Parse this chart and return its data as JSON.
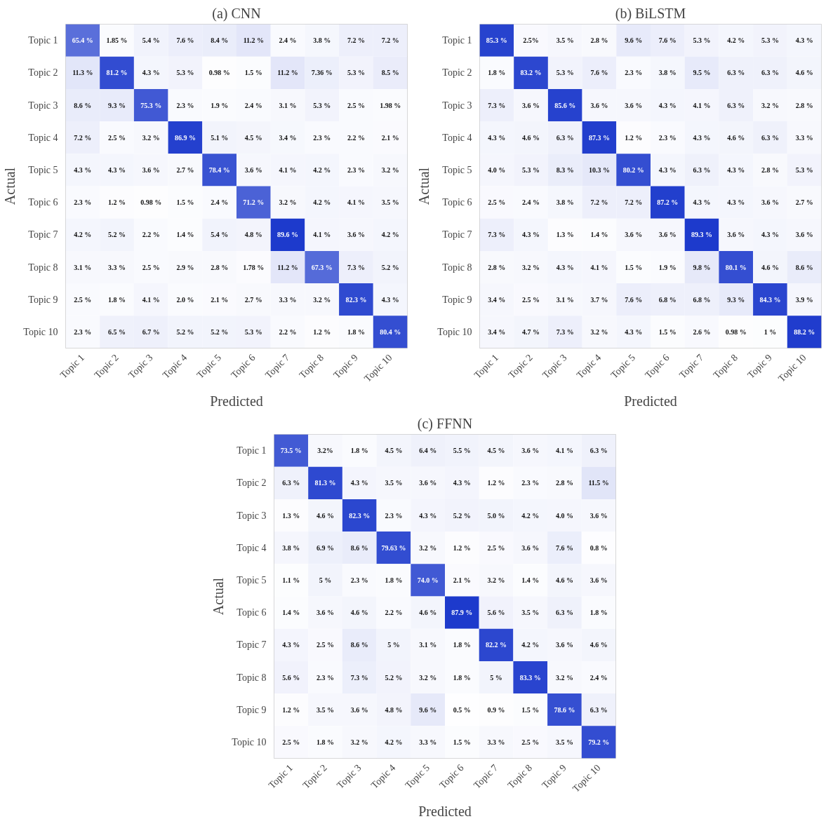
{
  "chart_data": [
    {
      "type": "heatmap",
      "title": "(a) CNN",
      "xlabel": "Predicted",
      "ylabel": "Actual",
      "categories": [
        "Topic 1",
        "Topic 2",
        "Topic 3",
        "Topic 4",
        "Topic 5",
        "Topic 6",
        "Topic 7",
        "Topic 8",
        "Topic 9",
        "Topic 10"
      ],
      "y_categories": [
        "Topic 1",
        "Topic 2",
        "Topic 3",
        "Topic 4",
        "Topic 5",
        "Topic 6",
        "Topic 7",
        "Topic 8",
        "Topic 9",
        "Topic 10"
      ],
      "cells": [
        [
          65.4,
          1.85,
          5.4,
          7.6,
          8.4,
          11.2,
          2.4,
          3.8,
          7.2,
          7.2
        ],
        [
          11.3,
          81.2,
          4.3,
          5.3,
          0.98,
          1.5,
          11.2,
          7.36,
          5.3,
          8.5
        ],
        [
          8.6,
          9.3,
          75.3,
          2.3,
          1.9,
          2.4,
          3.1,
          5.3,
          2.5,
          1.98
        ],
        [
          7.2,
          2.5,
          3.2,
          86.9,
          5.1,
          4.5,
          3.4,
          2.3,
          2.2,
          2.1
        ],
        [
          4.3,
          4.3,
          3.6,
          2.7,
          78.4,
          3.6,
          4.1,
          4.2,
          2.3,
          3.2
        ],
        [
          2.3,
          1.2,
          0.98,
          1.5,
          2.4,
          71.2,
          3.2,
          4.2,
          4.1,
          3.5
        ],
        [
          4.2,
          5.2,
          2.2,
          1.4,
          5.4,
          4.8,
          89.6,
          4.1,
          3.6,
          4.2
        ],
        [
          3.1,
          3.3,
          2.5,
          2.9,
          2.8,
          1.78,
          11.2,
          67.3,
          7.3,
          5.2
        ],
        [
          2.5,
          1.8,
          4.1,
          2.0,
          2.1,
          2.7,
          3.3,
          3.2,
          82.3,
          4.3
        ],
        [
          2.3,
          6.5,
          6.7,
          5.2,
          5.2,
          5.3,
          2.2,
          1.2,
          1.8,
          80.4
        ]
      ],
      "cell_labels": [
        [
          "65.4 %",
          "1.85 %",
          "5.4 %",
          "7.6 %",
          "8.4 %",
          "11.2 %",
          "2.4 %",
          "3.8 %",
          "7.2 %",
          "7.2 %"
        ],
        [
          "11.3 %",
          "81.2 %",
          "4.3 %",
          "5.3 %",
          "0.98 %",
          "1.5 %",
          "11.2 %",
          "7.36 %",
          "5.3 %",
          "8.5 %"
        ],
        [
          "8.6 %",
          "9.3 %",
          "75.3 %",
          "2.3 %",
          "1.9 %",
          "2.4 %",
          "3.1 %",
          "5.3 %",
          "2.5 %",
          "1.98 %"
        ],
        [
          "7.2 %",
          "2.5 %",
          "3.2 %",
          "86.9 %",
          "5.1 %",
          "4.5 %",
          "3.4 %",
          "2.3 %",
          "2.2 %",
          "2.1 %"
        ],
        [
          "4.3 %",
          "4.3 %",
          "3.6 %",
          "2.7 %",
          "78.4 %",
          "3.6 %",
          "4.1 %",
          "4.2 %",
          "2.3 %",
          "3.2 %"
        ],
        [
          "2.3 %",
          "1.2 %",
          "0.98 %",
          "1.5 %",
          "2.4 %",
          "71.2 %",
          "3.2 %",
          "4.2 %",
          "4.1 %",
          "3.5 %"
        ],
        [
          "4.2 %",
          "5.2 %",
          "2.2 %",
          "1.4 %",
          "5.4 %",
          "4.8 %",
          "89.6 %",
          "4.1 %",
          "3.6 %",
          "4.2 %"
        ],
        [
          "3.1 %",
          "3.3 %",
          "2.5 %",
          "2.9 %",
          "2.8 %",
          "1.78 %",
          "11.2 %",
          "67.3 %",
          "7.3 %",
          "5.2 %"
        ],
        [
          "2.5 %",
          "1.8 %",
          "4.1 %",
          "2.0 %",
          "2.1 %",
          "2.7 %",
          "3.3 %",
          "3.2 %",
          "82.3 %",
          "4.3 %"
        ],
        [
          "2.3 %",
          "6.5 %",
          "6.7 %",
          "5.2 %",
          "5.2 %",
          "5.3 %",
          "2.2 %",
          "1.2 %",
          "1.8 %",
          "80.4 %"
        ]
      ]
    },
    {
      "type": "heatmap",
      "title": "(b) BiLSTM",
      "xlabel": "Predicted",
      "ylabel": "Actual",
      "categories": [
        "Topic 1",
        "Topic 2",
        "Topic 3",
        "Topic 4",
        "Topic 5",
        "Topic 6",
        "Topic 7",
        "Topic 8",
        "Topic 9",
        "Topic 10"
      ],
      "y_categories": [
        "Topic 1",
        "Topic 2",
        "Topic 3",
        "Topic 4",
        "Topic 5",
        "Topic 6",
        "Topic 7",
        "Topic 8",
        "Topic 9",
        "Topic 10"
      ],
      "cells": [
        [
          85.3,
          2.5,
          3.5,
          2.8,
          9.6,
          7.6,
          5.3,
          4.2,
          5.3,
          4.3
        ],
        [
          1.8,
          83.2,
          5.3,
          7.6,
          2.3,
          3.8,
          9.5,
          6.3,
          6.3,
          4.6
        ],
        [
          7.3,
          3.6,
          85.6,
          3.6,
          3.6,
          4.3,
          4.1,
          6.3,
          3.2,
          2.8
        ],
        [
          4.3,
          4.6,
          6.3,
          87.3,
          1.2,
          2.3,
          4.3,
          4.6,
          6.3,
          3.3
        ],
        [
          4.0,
          5.3,
          8.3,
          10.3,
          80.2,
          4.3,
          6.3,
          4.3,
          2.8,
          5.3
        ],
        [
          2.5,
          2.4,
          3.8,
          7.2,
          7.2,
          87.2,
          4.3,
          4.3,
          3.6,
          2.7
        ],
        [
          7.3,
          4.3,
          1.3,
          1.4,
          3.6,
          3.6,
          89.3,
          3.6,
          4.3,
          3.6
        ],
        [
          2.8,
          3.2,
          4.3,
          4.1,
          1.5,
          1.9,
          9.8,
          80.1,
          4.6,
          8.6
        ],
        [
          3.4,
          2.5,
          3.1,
          3.7,
          7.6,
          6.8,
          6.8,
          9.3,
          84.3,
          3.9
        ],
        [
          3.4,
          4.7,
          7.3,
          3.2,
          4.3,
          1.5,
          2.6,
          0.98,
          1,
          88.2
        ]
      ],
      "cell_labels": [
        [
          "85.3 %",
          "2.5%",
          "3.5 %",
          "2.8 %",
          "9.6 %",
          "7.6 %",
          "5.3 %",
          "4.2 %",
          "5.3 %",
          "4.3 %"
        ],
        [
          "1.8 %",
          "83.2 %",
          "5.3 %",
          "7.6 %",
          "2.3 %",
          "3.8 %",
          "9.5 %",
          "6.3 %",
          "6.3 %",
          "4.6 %"
        ],
        [
          "7.3 %",
          "3.6 %",
          "85.6 %",
          "3.6 %",
          "3.6 %",
          "4.3 %",
          "4.1 %",
          "6.3 %",
          "3.2 %",
          "2.8 %"
        ],
        [
          "4.3 %",
          "4.6 %",
          "6.3 %",
          "87.3 %",
          "1.2 %",
          "2.3 %",
          "4.3 %",
          "4.6 %",
          "6.3 %",
          "3.3 %"
        ],
        [
          "4.0 %",
          "5.3 %",
          "8.3 %",
          "10.3 %",
          "80.2 %",
          "4.3 %",
          "6.3 %",
          "4.3 %",
          "2.8 %",
          "5.3 %"
        ],
        [
          "2.5 %",
          "2.4 %",
          "3.8 %",
          "7.2 %",
          "7.2 %",
          "87.2 %",
          "4.3 %",
          "4.3 %",
          "3.6 %",
          "2.7 %"
        ],
        [
          "7.3 %",
          "4.3 %",
          "1.3 %",
          "1.4 %",
          "3.6 %",
          "3.6 %",
          "89.3 %",
          "3.6 %",
          "4.3 %",
          "3.6 %"
        ],
        [
          "2.8 %",
          "3.2 %",
          "4.3 %",
          "4.1 %",
          "1.5 %",
          "1.9 %",
          "9.8 %",
          "80.1 %",
          "4.6 %",
          "8.6 %"
        ],
        [
          "3.4 %",
          "2.5 %",
          "3.1 %",
          "3.7 %",
          "7.6 %",
          "6.8 %",
          "6.8 %",
          "9.3 %",
          "84.3 %",
          "3.9 %"
        ],
        [
          "3.4 %",
          "4.7 %",
          "7.3 %",
          "3.2 %",
          "4.3 %",
          "1.5 %",
          "2.6 %",
          "0.98 %",
          "1 %",
          "88.2 %"
        ]
      ]
    },
    {
      "type": "heatmap",
      "title": "(c) FFNN",
      "xlabel": "Predicted",
      "ylabel": "Actual",
      "categories": [
        "Topic 1",
        "Topic 2",
        "Topic 3",
        "Topic 4",
        "Topic 5",
        "Topic 6",
        "Topic 7",
        "Topic 8",
        "Topic 9",
        "Topic 10"
      ],
      "y_categories": [
        "Topic 1",
        "Topic 2",
        "Topic 3",
        "Topic 4",
        "Topic 5",
        "Topic 6",
        "Topic 7",
        "Topic 8",
        "Topic 9",
        "Topic 10"
      ],
      "cells": [
        [
          73.5,
          3.2,
          1.8,
          4.5,
          6.4,
          5.5,
          4.5,
          3.6,
          4.1,
          6.3
        ],
        [
          6.3,
          81.3,
          4.3,
          3.5,
          3.6,
          4.3,
          1.2,
          2.3,
          2.8,
          11.5
        ],
        [
          1.3,
          4.6,
          82.3,
          2.3,
          4.3,
          5.2,
          5.0,
          4.2,
          4.0,
          3.6
        ],
        [
          3.8,
          6.9,
          8.6,
          79.63,
          3.2,
          1.2,
          2.5,
          3.6,
          7.6,
          0.8
        ],
        [
          1.1,
          5,
          2.3,
          1.8,
          74.0,
          2.1,
          3.2,
          1.4,
          4.6,
          3.6
        ],
        [
          1.4,
          3.6,
          4.6,
          2.2,
          4.6,
          87.9,
          5.6,
          3.5,
          6.3,
          1.8
        ],
        [
          4.3,
          2.5,
          8.6,
          5,
          3.1,
          1.8,
          82.2,
          4.2,
          3.6,
          4.6
        ],
        [
          5.6,
          2.3,
          7.3,
          5.2,
          3.2,
          1.8,
          5,
          83.3,
          3.2,
          2.4
        ],
        [
          1.2,
          3.5,
          3.6,
          4.8,
          9.6,
          0.5,
          0.9,
          1.5,
          78.6,
          6.3
        ],
        [
          2.5,
          1.8,
          3.2,
          4.2,
          3.3,
          1.5,
          3.3,
          2.5,
          3.5,
          79.2
        ]
      ],
      "cell_labels": [
        [
          "73.5 %",
          "3.2%",
          "1.8 %",
          "4.5 %",
          "6.4 %",
          "5.5 %",
          "4.5 %",
          "3.6 %",
          "4.1 %",
          "6.3 %"
        ],
        [
          "6.3 %",
          "81.3 %",
          "4.3 %",
          "3.5 %",
          "3.6 %",
          "4.3 %",
          "1.2 %",
          "2.3 %",
          "2.8 %",
          "11.5 %"
        ],
        [
          "1.3 %",
          "4.6 %",
          "82.3 %",
          "2.3 %",
          "4.3 %",
          "5.2 %",
          "5.0 %",
          "4.2 %",
          "4.0 %",
          "3.6 %"
        ],
        [
          "3.8 %",
          "6.9 %",
          "8.6 %",
          "79.63 %",
          "3.2 %",
          "1.2 %",
          "2.5 %",
          "3.6 %",
          "7.6 %",
          "0.8 %"
        ],
        [
          "1.1 %",
          "5 %",
          "2.3 %",
          "1.8 %",
          "74.0 %",
          "2.1 %",
          "3.2 %",
          "1.4 %",
          "4.6 %",
          "3.6 %"
        ],
        [
          "1.4 %",
          "3.6 %",
          "4.6 %",
          "2.2 %",
          "4.6 %",
          "87.9 %",
          "5.6 %",
          "3.5 %",
          "6.3 %",
          "1.8 %"
        ],
        [
          "4.3 %",
          "2.5 %",
          "8.6 %",
          "5 %",
          "3.1 %",
          "1.8 %",
          "82.2 %",
          "4.2 %",
          "3.6 %",
          "4.6 %"
        ],
        [
          "5.6 %",
          "2.3 %",
          "7.3 %",
          "5.2 %",
          "3.2 %",
          "1.8 %",
          "5 %",
          "83.3 %",
          "3.2 %",
          "2.4 %"
        ],
        [
          "1.2 %",
          "3.5 %",
          "3.6 %",
          "4.8 %",
          "9.6 %",
          "0.5 %",
          "0.9 %",
          "1.5 %",
          "78.6 %",
          "6.3 %"
        ],
        [
          "2.5 %",
          "1.8 %",
          "3.2 %",
          "4.2 %",
          "3.3 %",
          "1.5 %",
          "3.3 %",
          "2.5 %",
          "3.5 %",
          "79.2 %"
        ]
      ]
    }
  ]
}
